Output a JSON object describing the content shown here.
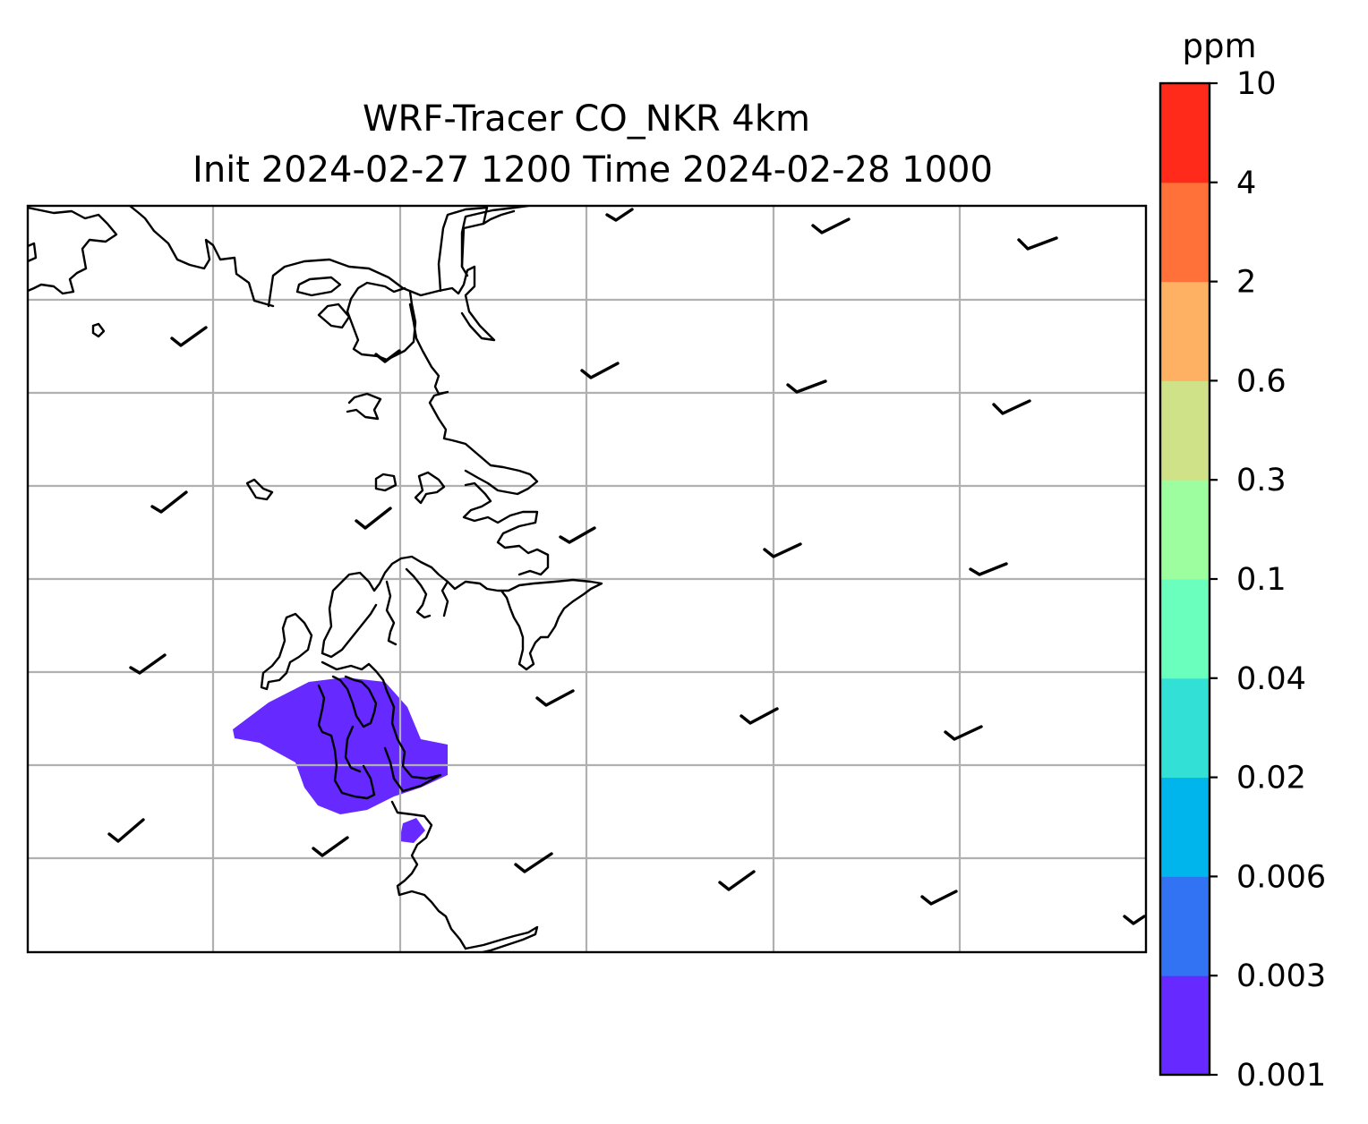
{
  "title": {
    "line1": "WRF-Tracer CO_NKR 4km",
    "line2": "Init 2024-02-27 1200 Time 2024-02-28 1000"
  },
  "colorbar": {
    "unit": "ppm",
    "levels": [
      "0.001",
      "0.003",
      "0.006",
      "0.02",
      "0.04",
      "0.1",
      "0.3",
      "0.6",
      "2",
      "4",
      "10"
    ],
    "colors": [
      "#6629ff",
      "#3273f4",
      "#00b5eb",
      "#32e0d6",
      "#6affbc",
      "#9cfe9f",
      "#cfe288",
      "#ffb163",
      "#ff7138",
      "#ff2a19"
    ]
  },
  "map": {
    "gridlines": true,
    "plume_color": "#6629ff",
    "plume_level": "0.001-0.003 ppm",
    "wind_barb_icon": "wind-barb-icon"
  }
}
